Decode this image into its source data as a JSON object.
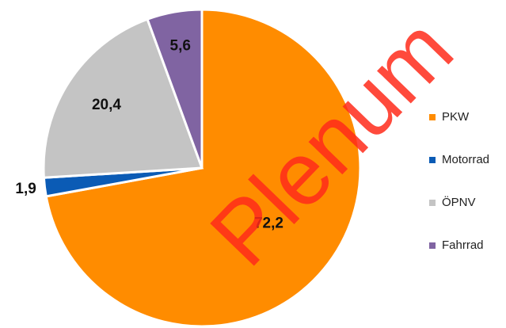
{
  "chart_data": {
    "type": "pie",
    "categories": [
      "PKW",
      "Motorrad",
      "ÖPNV",
      "Fahrrad"
    ],
    "values": [
      72.2,
      1.9,
      20.4,
      5.6
    ],
    "value_labels": [
      "72,2",
      "1,9",
      "20,4",
      "5,6"
    ],
    "colors": [
      "#ff8c00",
      "#0b5bb5",
      "#c4c4c4",
      "#8064a2"
    ],
    "legend": "right",
    "watermark": "Plenum"
  }
}
